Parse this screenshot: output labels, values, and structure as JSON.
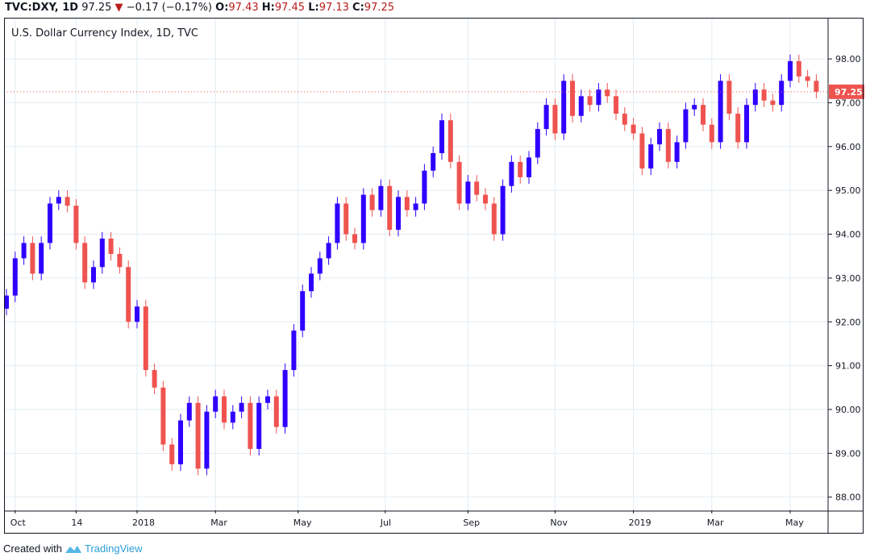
{
  "header": {
    "symbol": "TVC:DXY, 1D",
    "last": "97.25",
    "change": "−0.17 (−0.17%)",
    "o_label": "O:",
    "o": "97.43",
    "h_label": "H:",
    "h": "97.45",
    "l_label": "L:",
    "l": "97.13",
    "c_label": "C:",
    "c": "97.25",
    "arrow_icon": "triangle-down-icon"
  },
  "footer": {
    "prefix": "Created with",
    "brand": "TradingView",
    "logo_icon": "tradingview-logo-icon"
  },
  "colors": {
    "up": "#2f00ff",
    "down": "#ef5350",
    "grid": "#e1ecf2",
    "last_price_bg": "#ef5350"
  },
  "chart_data": {
    "type": "candlestick",
    "title": "U.S. Dollar Currency Index, 1D, TVC",
    "interval_shown": "weekly approximation of daily candles",
    "ylim": [
      87.7,
      98.94
    ],
    "y_ticks": [
      "88.00",
      "89.00",
      "90.00",
      "91.00",
      "92.00",
      "93.00",
      "94.00",
      "95.00",
      "96.00",
      "97.00",
      "98.00"
    ],
    "x_ticks": [
      {
        "label": "Oct",
        "index": 1
      },
      {
        "label": "14",
        "index": 8
      },
      {
        "label": "2018",
        "index": 15
      },
      {
        "label": "Mar",
        "index": 24
      },
      {
        "label": "May",
        "index": 33.5
      },
      {
        "label": "Jul",
        "index": 43.5
      },
      {
        "label": "Sep",
        "index": 53
      },
      {
        "label": "Nov",
        "index": 63
      },
      {
        "label": "2019",
        "index": 72
      },
      {
        "label": "Mar",
        "index": 81
      },
      {
        "label": "May",
        "index": 90
      }
    ],
    "last_price": "97.25",
    "grid": true,
    "close": [
      92.6,
      93.45,
      93.8,
      93.1,
      93.8,
      94.7,
      94.85,
      94.65,
      93.8,
      92.9,
      93.25,
      93.9,
      93.55,
      93.25,
      92.0,
      92.35,
      90.9,
      90.5,
      89.2,
      88.75,
      89.75,
      90.15,
      88.65,
      89.95,
      90.3,
      89.7,
      89.95,
      90.15,
      89.1,
      90.15,
      90.3,
      89.6,
      90.9,
      91.8,
      92.7,
      93.1,
      93.45,
      93.8,
      94.7,
      94.0,
      93.8,
      94.9,
      94.55,
      95.1,
      94.1,
      94.85,
      94.55,
      94.7,
      95.45,
      95.85,
      96.6,
      95.65,
      94.7,
      95.2,
      94.9,
      94.7,
      94.0,
      95.1,
      95.65,
      95.3,
      95.75,
      96.4,
      96.95,
      96.3,
      97.5,
      96.7,
      97.15,
      96.95,
      97.3,
      97.15,
      96.75,
      96.5,
      96.3,
      95.5,
      96.05,
      96.4,
      95.65,
      96.1,
      96.85,
      96.95,
      96.5,
      96.1,
      97.5,
      96.75,
      96.1,
      96.95,
      97.3,
      97.05,
      96.95,
      97.5,
      97.95,
      97.6,
      97.5,
      97.25
    ]
  }
}
